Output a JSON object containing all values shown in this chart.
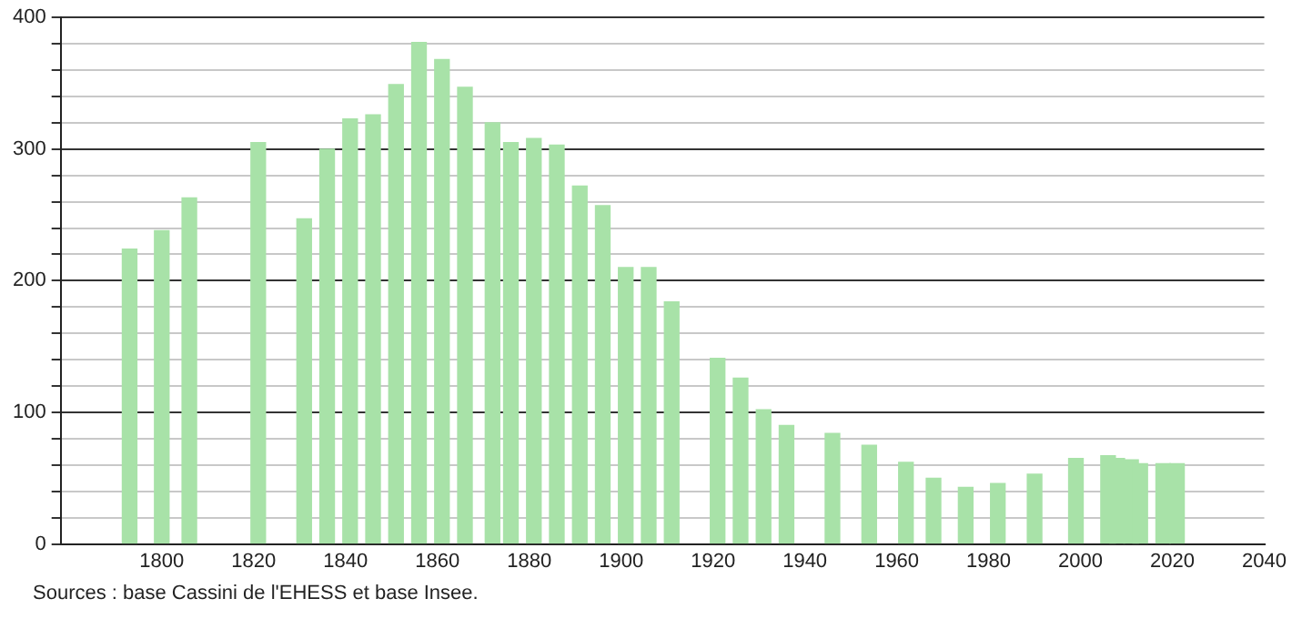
{
  "chart_data": {
    "type": "bar",
    "x": [
      1793,
      1800,
      1806,
      1821,
      1831,
      1836,
      1841,
      1846,
      1851,
      1856,
      1861,
      1866,
      1872,
      1876,
      1881,
      1886,
      1891,
      1896,
      1901,
      1906,
      1911,
      1921,
      1926,
      1931,
      1936,
      1946,
      1954,
      1962,
      1968,
      1975,
      1982,
      1990,
      1999,
      2006,
      2008,
      2011,
      2013,
      2018,
      2021
    ],
    "values": [
      224,
      238,
      263,
      305,
      247,
      300,
      323,
      326,
      349,
      381,
      368,
      347,
      320,
      305,
      308,
      303,
      272,
      257,
      210,
      210,
      184,
      141,
      126,
      102,
      90,
      84,
      75,
      62,
      50,
      43,
      46,
      53,
      65,
      67,
      65,
      64,
      61,
      61,
      61
    ],
    "color": "#a8e2a8",
    "xlim": [
      1778,
      2040
    ],
    "xticks": [
      1800,
      1820,
      1840,
      1860,
      1880,
      1900,
      1920,
      1940,
      1960,
      1980,
      2000,
      2020,
      2040
    ],
    "ylim": [
      0,
      400
    ],
    "yticks": [
      0,
      {
        "value": 20,
        "label": null
      },
      {
        "value": 40,
        "label": null
      },
      {
        "value": 60,
        "label": null
      },
      {
        "value": 80,
        "label": null
      },
      100,
      {
        "value": 120,
        "label": null
      },
      {
        "value": 140,
        "label": null
      },
      {
        "value": 160,
        "label": null
      },
      {
        "value": 180,
        "label": null
      },
      200,
      {
        "value": 220,
        "label": null
      },
      {
        "value": 240,
        "label": null
      },
      {
        "value": 260,
        "label": null
      },
      {
        "value": 280,
        "label": null
      },
      300,
      {
        "value": 320,
        "label": null
      },
      {
        "value": 340,
        "label": null
      },
      {
        "value": 360,
        "label": null
      },
      {
        "value": 380,
        "label": null
      },
      400
    ],
    "grid": "y",
    "legend": false,
    "annotations": [
      "Sources : base Cassini de l'EHESS et base Insee."
    ]
  }
}
